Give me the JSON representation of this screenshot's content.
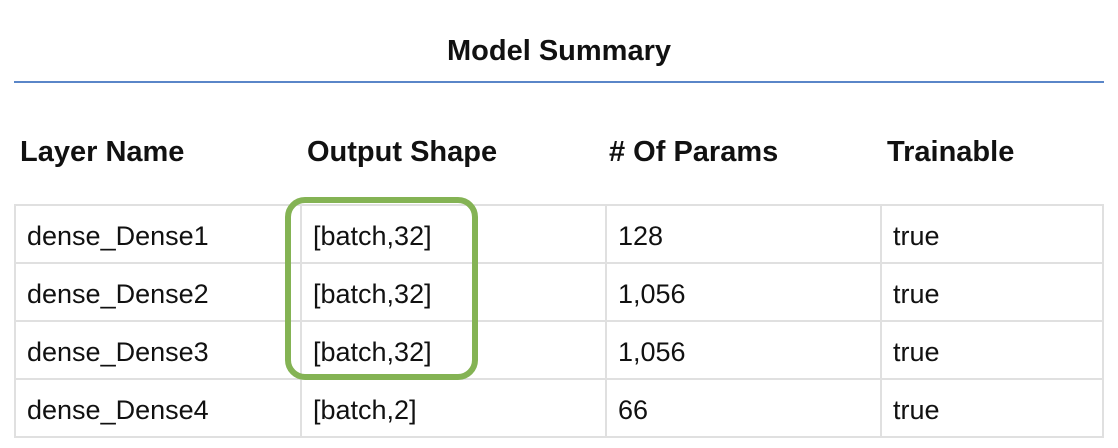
{
  "summary": {
    "title": "Model Summary",
    "columns": [
      "Layer Name",
      "Output Shape",
      "# Of Params",
      "Trainable"
    ],
    "rows": [
      {
        "layer_name": "dense_Dense1",
        "output_shape": "[batch,32]",
        "params": "128",
        "trainable": "true"
      },
      {
        "layer_name": "dense_Dense2",
        "output_shape": "[batch,32]",
        "params": "1,056",
        "trainable": "true"
      },
      {
        "layer_name": "dense_Dense3",
        "output_shape": "[batch,32]",
        "params": "1,056",
        "trainable": "true"
      },
      {
        "layer_name": "dense_Dense4",
        "output_shape": "[batch,2]",
        "params": "66",
        "trainable": "true"
      }
    ]
  },
  "colors": {
    "title_rule": "#5a86c8",
    "grid": "#e0e0e0",
    "highlight": "#84b354"
  }
}
